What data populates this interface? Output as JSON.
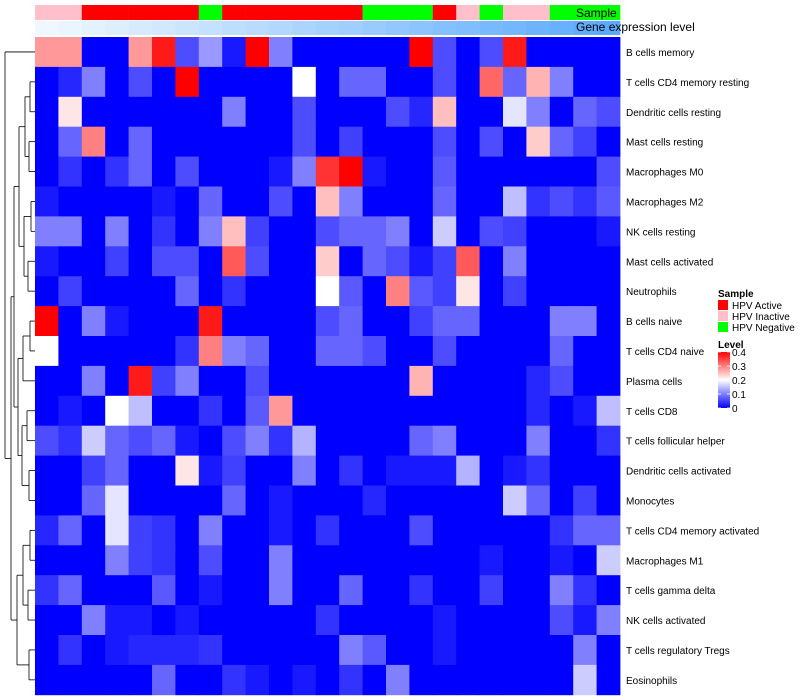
{
  "chart_data": {
    "type": "heatmap",
    "title": "",
    "annotation_tracks": [
      {
        "name": "Sample",
        "label": "Sample"
      },
      {
        "name": "Gene expression level",
        "label": "Gene expression level"
      }
    ],
    "sample_annotation": [
      "HPV Inactive",
      "HPV Inactive",
      "HPV Active",
      "HPV Active",
      "HPV Active",
      "HPV Active",
      "HPV Active",
      "HPV Negative",
      "HPV Active",
      "HPV Active",
      "HPV Active",
      "HPV Active",
      "HPV Active",
      "HPV Active",
      "HPV Negative",
      "HPV Negative",
      "HPV Negative",
      "HPV Active",
      "HPV Inactive",
      "HPV Negative",
      "HPV Inactive",
      "HPV Inactive",
      "HPV Negative",
      "HPV Negative",
      "HPV Negative"
    ],
    "expression_gradient": {
      "from": "#f0f8ff",
      "to": "#5aaaff"
    },
    "rows": [
      "B cells memory",
      "T cells CD4 memory resting",
      "Dendritic cells resting",
      "Mast cells resting",
      "Macrophages M0",
      "Macrophages M2",
      "NK cells resting",
      "Mast cells activated",
      "Neutrophils",
      "B cells naive",
      "T cells CD4 naive",
      "Plasma cells",
      "T cells CD8",
      "T cells follicular helper",
      "Dendritic cells activated",
      "Monocytes",
      "T cells CD4 memory activated",
      "Macrophages M1",
      "T cells gamma delta",
      "NK cells activated",
      "T cells regulatory  Tregs",
      "Eosinophils"
    ],
    "values": [
      [
        0.28,
        0.28,
        0,
        0,
        0.28,
        0.38,
        0.06,
        0.12,
        0.02,
        0.4,
        0.1,
        0,
        0,
        0,
        0,
        0,
        0.4,
        0.06,
        0,
        0.06,
        0.38,
        0,
        0,
        0,
        0
      ],
      [
        0,
        0.03,
        0.1,
        0,
        0.06,
        0,
        0.4,
        0,
        0,
        0,
        0,
        0.2,
        0,
        0.08,
        0.08,
        0,
        0,
        0.06,
        0,
        0.32,
        0.08,
        0.26,
        0.1,
        0,
        0
      ],
      [
        0,
        0.22,
        0,
        0,
        0,
        0,
        0,
        0,
        0.1,
        0,
        0,
        0.06,
        0,
        0,
        0,
        0.06,
        0.03,
        0.25,
        0,
        0,
        0.18,
        0.1,
        0,
        0.08,
        0.06
      ],
      [
        0,
        0.08,
        0.3,
        0,
        0.08,
        0,
        0,
        0,
        0,
        0,
        0,
        0.06,
        0,
        0.05,
        0,
        0,
        0,
        0.06,
        0,
        0.06,
        0,
        0.24,
        0.08,
        0.05,
        0
      ],
      [
        0,
        0.04,
        0,
        0.04,
        0.08,
        0,
        0.06,
        0,
        0,
        0,
        0.02,
        0.1,
        0.36,
        0.4,
        0.02,
        0,
        0,
        0.07,
        0,
        0,
        0,
        0,
        0,
        0,
        0.06
      ],
      [
        0.02,
        0,
        0,
        0,
        0,
        0.02,
        0,
        0.08,
        0,
        0,
        0.06,
        0,
        0.25,
        0.1,
        0,
        0,
        0,
        0.08,
        0,
        0,
        0.15,
        0.04,
        0.06,
        0.04,
        0.07
      ],
      [
        0.1,
        0.1,
        0,
        0.1,
        0,
        0.04,
        0,
        0.1,
        0.25,
        0.05,
        0,
        0,
        0.06,
        0.08,
        0.08,
        0.1,
        0,
        0.16,
        0,
        0.06,
        0.05,
        0,
        0,
        0,
        0.02
      ],
      [
        0.02,
        0,
        0,
        0.05,
        0,
        0.06,
        0.06,
        0,
        0.33,
        0.06,
        0,
        0,
        0.24,
        0,
        0.08,
        0.06,
        0.02,
        0.05,
        0.33,
        0,
        0.1,
        0,
        0,
        0,
        0
      ],
      [
        0,
        0.05,
        0,
        0,
        0,
        0,
        0.08,
        0,
        0.04,
        0,
        0,
        0,
        0.2,
        0.07,
        0,
        0.3,
        0.07,
        0.05,
        0.22,
        0,
        0.05,
        0,
        0,
        0,
        0
      ],
      [
        0.4,
        0,
        0.1,
        0.02,
        0,
        0,
        0,
        0.38,
        0,
        0,
        0,
        0,
        0.06,
        0.08,
        0,
        0,
        0.05,
        0.08,
        0.08,
        0,
        0,
        0,
        0.1,
        0.1,
        0
      ],
      [
        0.2,
        0,
        0,
        0,
        0,
        0,
        0.04,
        0.3,
        0.1,
        0.08,
        0,
        0,
        0.08,
        0.08,
        0.06,
        0,
        0,
        0.06,
        0,
        0,
        0,
        0,
        0.08,
        0,
        0
      ],
      [
        0,
        0,
        0.1,
        0,
        0.38,
        0.05,
        0.1,
        0,
        0,
        0.06,
        0,
        0,
        0,
        0,
        0,
        0,
        0.26,
        0,
        0,
        0,
        0,
        0.03,
        0.06,
        0,
        0
      ],
      [
        0,
        0.02,
        0,
        0.2,
        0.15,
        0,
        0,
        0.04,
        0,
        0.07,
        0.28,
        0,
        0,
        0,
        0,
        0,
        0,
        0,
        0,
        0,
        0,
        0.03,
        0,
        0.02,
        0.15
      ],
      [
        0.06,
        0.04,
        0.16,
        0.08,
        0.06,
        0.08,
        0.02,
        0,
        0.06,
        0.1,
        0.04,
        0.14,
        0,
        0,
        0,
        0,
        0.08,
        0.1,
        0,
        0,
        0,
        0.1,
        0,
        0,
        0.04
      ],
      [
        0,
        0,
        0.05,
        0.08,
        0,
        0,
        0.22,
        0.02,
        0.05,
        0,
        0,
        0.1,
        0,
        0.04,
        0,
        0.02,
        0.02,
        0.02,
        0.14,
        0,
        0.02,
        0.04,
        0,
        0,
        0
      ],
      [
        0,
        0,
        0.08,
        0.18,
        0,
        0,
        0,
        0,
        0.08,
        0,
        0.02,
        0,
        0,
        0,
        0.03,
        0,
        0,
        0,
        0,
        0,
        0.16,
        0.08,
        0,
        0.05,
        0
      ],
      [
        0.03,
        0.08,
        0,
        0.18,
        0.05,
        0.04,
        0,
        0.1,
        0,
        0,
        0.02,
        0,
        0.04,
        0,
        0,
        0,
        0.06,
        0,
        0,
        0,
        0,
        0,
        0.04,
        0.08,
        0.08
      ],
      [
        0,
        0,
        0,
        0.1,
        0.05,
        0.04,
        0,
        0.06,
        0,
        0,
        0.1,
        0,
        0,
        0,
        0,
        0,
        0,
        0,
        0,
        0.02,
        0,
        0,
        0.02,
        0,
        0.16
      ],
      [
        0.04,
        0.08,
        0,
        0,
        0,
        0.07,
        0,
        0.02,
        0,
        0,
        0.1,
        0,
        0,
        0.08,
        0,
        0,
        0.04,
        0,
        0,
        0.05,
        0,
        0,
        0.1,
        0.04,
        0
      ],
      [
        0,
        0,
        0.1,
        0.02,
        0.02,
        0,
        0.02,
        0,
        0,
        0,
        0,
        0,
        0.04,
        0,
        0,
        0,
        0,
        0.02,
        0,
        0,
        0,
        0,
        0.06,
        0.02,
        0.1
      ],
      [
        0,
        0.04,
        0,
        0.02,
        0.03,
        0.03,
        0.03,
        0.04,
        0,
        0,
        0,
        0,
        0,
        0.1,
        0.07,
        0,
        0,
        0.02,
        0,
        0,
        0,
        0,
        0,
        0.1,
        0
      ],
      [
        0,
        0,
        0,
        0,
        0,
        0.08,
        0,
        0,
        0.04,
        0.02,
        0,
        0.02,
        0,
        0.04,
        0,
        0.1,
        0,
        0,
        0,
        0,
        0,
        0,
        0,
        0.16,
        0
      ]
    ],
    "legend": {
      "sample_title": "Sample",
      "sample_items": [
        {
          "label": "HPV Active",
          "color": "#ff0000"
        },
        {
          "label": "HPV Inactive",
          "color": "#ffc0cb"
        },
        {
          "label": "HPV Negative",
          "color": "#00ff00"
        }
      ],
      "level_title": "Level",
      "level_ticks": [
        "0.4",
        "0.3",
        "0.2",
        "0.1",
        "0"
      ],
      "level_range": [
        0,
        0.4
      ]
    },
    "colorscale": {
      "low": "#0000ff",
      "mid": "#ffffff",
      "high": "#ff0000",
      "mid_value": 0.2
    }
  }
}
